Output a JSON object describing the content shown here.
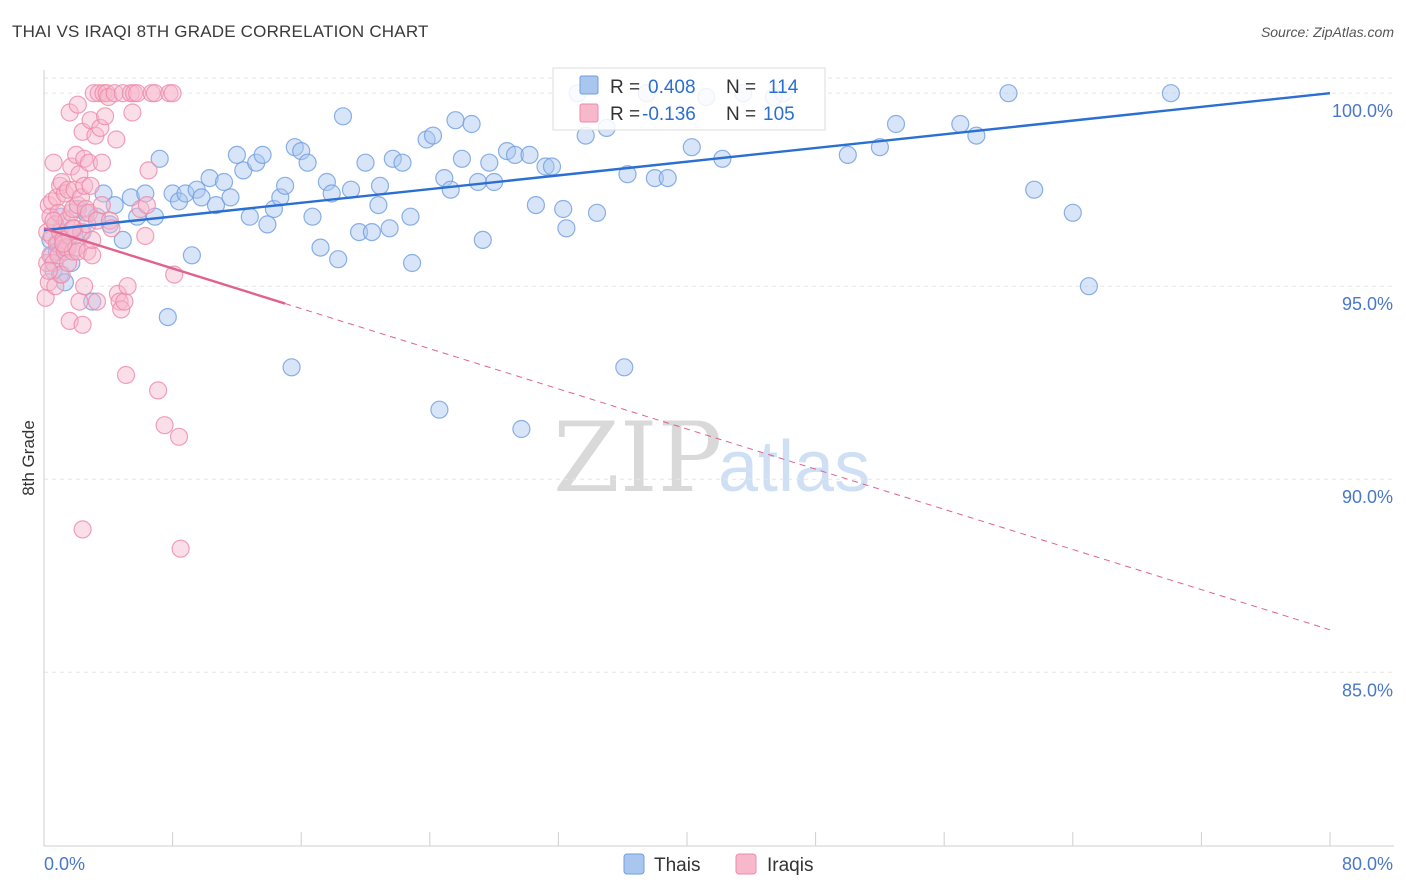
{
  "title": "THAI VS IRAQI 8TH GRADE CORRELATION CHART",
  "source": "Source: ZipAtlas.com",
  "colors": {
    "thais_fill": "#a9c6ef",
    "thais_stroke": "#6e9ee0",
    "thais_line": "#2a6fd1",
    "iraqis_fill": "#f7b8cb",
    "iraqis_stroke": "#ee8aaa",
    "iraqis_line": "#e0628e",
    "tick_text": "#4a78c8"
  },
  "legend": {
    "r_label": "R =",
    "n_label": "N =",
    "thais": {
      "r": "0.408",
      "n": "114"
    },
    "iraqis": {
      "r": "-0.136",
      "n": "105"
    }
  },
  "bottom_legend": {
    "thais": "Thais",
    "iraqis": "Iraqis"
  },
  "watermark": {
    "zip": "ZIP",
    "atlas": "atlas"
  },
  "chart_data": {
    "type": "scatter",
    "title": "THAI VS IRAQI 8TH GRADE CORRELATION CHART",
    "xlabel": "",
    "ylabel": "8th Grade",
    "xlim": [
      0,
      80
    ],
    "ylim": [
      80.5,
      100.6
    ],
    "x_tick_labels": [
      "0.0%",
      "80.0%"
    ],
    "y_ticks": [
      {
        "value": 100,
        "label": "100.0%"
      },
      {
        "value": 95,
        "label": "95.0%"
      },
      {
        "value": 90,
        "label": "90.0%"
      },
      {
        "value": 85,
        "label": "85.0%"
      }
    ],
    "series": [
      {
        "name": "Thais",
        "r": 0.408,
        "n": 114,
        "trend": {
          "x0": 0,
          "y0": 96.45,
          "x1": 80,
          "y1": 100.0,
          "x_solid_end": 80
        },
        "points": [
          [
            0.4,
            96.2
          ],
          [
            0.5,
            95.8
          ],
          [
            0.6,
            95.4
          ],
          [
            0.7,
            96.6
          ],
          [
            0.8,
            95.9
          ],
          [
            0.9,
            96.1
          ],
          [
            1.0,
            95.3
          ],
          [
            1.1,
            96.8
          ],
          [
            1.3,
            95.1
          ],
          [
            1.5,
            96.0
          ],
          [
            1.7,
            95.6
          ],
          [
            1.9,
            96.3
          ],
          [
            2.1,
            97.0
          ],
          [
            2.4,
            96.4
          ],
          [
            2.6,
            96.9
          ],
          [
            3.0,
            94.6
          ],
          [
            3.3,
            96.8
          ],
          [
            3.7,
            97.4
          ],
          [
            4.1,
            96.6
          ],
          [
            4.4,
            97.1
          ],
          [
            4.9,
            96.2
          ],
          [
            5.4,
            97.3
          ],
          [
            5.8,
            96.8
          ],
          [
            6.3,
            97.4
          ],
          [
            6.9,
            96.8
          ],
          [
            7.2,
            98.3
          ],
          [
            7.7,
            94.2
          ],
          [
            8.0,
            97.4
          ],
          [
            8.4,
            97.2
          ],
          [
            8.8,
            97.4
          ],
          [
            9.2,
            95.8
          ],
          [
            9.5,
            97.5
          ],
          [
            9.8,
            97.3
          ],
          [
            10.3,
            97.8
          ],
          [
            10.7,
            97.1
          ],
          [
            11.2,
            97.7
          ],
          [
            11.6,
            97.3
          ],
          [
            12.0,
            98.4
          ],
          [
            12.4,
            98.0
          ],
          [
            12.8,
            96.8
          ],
          [
            13.2,
            98.2
          ],
          [
            13.6,
            98.4
          ],
          [
            13.9,
            96.6
          ],
          [
            14.3,
            97.0
          ],
          [
            14.7,
            97.3
          ],
          [
            15.0,
            97.6
          ],
          [
            15.4,
            92.9
          ],
          [
            15.6,
            98.6
          ],
          [
            16.0,
            98.5
          ],
          [
            16.4,
            98.2
          ],
          [
            16.7,
            96.8
          ],
          [
            17.2,
            96.0
          ],
          [
            17.6,
            97.7
          ],
          [
            17.9,
            97.4
          ],
          [
            18.3,
            95.7
          ],
          [
            18.6,
            99.4
          ],
          [
            19.1,
            97.5
          ],
          [
            19.6,
            96.4
          ],
          [
            20.0,
            98.2
          ],
          [
            20.4,
            96.4
          ],
          [
            20.8,
            97.1
          ],
          [
            20.9,
            97.6
          ],
          [
            21.5,
            96.5
          ],
          [
            21.7,
            98.3
          ],
          [
            22.3,
            98.2
          ],
          [
            22.8,
            96.8
          ],
          [
            22.9,
            95.6
          ],
          [
            23.8,
            98.8
          ],
          [
            24.2,
            98.9
          ],
          [
            24.6,
            91.8
          ],
          [
            24.9,
            97.8
          ],
          [
            25.3,
            97.5
          ],
          [
            25.6,
            99.3
          ],
          [
            26.0,
            98.3
          ],
          [
            26.6,
            99.2
          ],
          [
            27.0,
            97.7
          ],
          [
            27.3,
            96.2
          ],
          [
            27.7,
            98.2
          ],
          [
            28.0,
            97.7
          ],
          [
            28.8,
            98.5
          ],
          [
            29.3,
            98.4
          ],
          [
            29.7,
            91.3
          ],
          [
            30.2,
            98.4
          ],
          [
            30.6,
            97.1
          ],
          [
            31.2,
            98.1
          ],
          [
            31.6,
            98.1
          ],
          [
            32.3,
            97.0
          ],
          [
            32.5,
            96.5
          ],
          [
            33.2,
            100.0
          ],
          [
            33.7,
            98.9
          ],
          [
            34.4,
            96.9
          ],
          [
            35.0,
            99.1
          ],
          [
            36.1,
            92.9
          ],
          [
            36.3,
            97.9
          ],
          [
            37.5,
            100.0
          ],
          [
            38.0,
            97.8
          ],
          [
            38.8,
            97.8
          ],
          [
            40.3,
            98.6
          ],
          [
            41.2,
            99.9
          ],
          [
            42.2,
            98.3
          ],
          [
            43.5,
            100.0
          ],
          [
            45.4,
            99.9
          ],
          [
            46.0,
            100.0
          ],
          [
            50.0,
            98.4
          ],
          [
            52.0,
            98.6
          ],
          [
            53.0,
            99.2
          ],
          [
            57.0,
            99.2
          ],
          [
            58.0,
            98.9
          ],
          [
            60.0,
            100.0
          ],
          [
            61.6,
            97.5
          ],
          [
            64.0,
            96.9
          ],
          [
            65.0,
            95.0
          ],
          [
            70.1,
            100.0
          ],
          [
            1.2,
            96.0
          ]
        ]
      },
      {
        "name": "Iraqis",
        "r": -0.136,
        "n": 105,
        "trend": {
          "x0": 0,
          "y0": 96.5,
          "x1": 80,
          "y1": 86.1,
          "x_solid_end": 15
        },
        "points": [
          [
            0.1,
            94.7
          ],
          [
            0.2,
            95.6
          ],
          [
            0.2,
            96.4
          ],
          [
            0.3,
            97.1
          ],
          [
            0.3,
            95.1
          ],
          [
            0.4,
            96.8
          ],
          [
            0.4,
            95.8
          ],
          [
            0.5,
            97.2
          ],
          [
            0.5,
            96.3
          ],
          [
            0.6,
            95.6
          ],
          [
            0.6,
            98.2
          ],
          [
            0.7,
            96.6
          ],
          [
            0.7,
            95.0
          ],
          [
            0.8,
            97.3
          ],
          [
            0.8,
            96.1
          ],
          [
            0.9,
            96.9
          ],
          [
            0.9,
            95.8
          ],
          [
            1.0,
            97.6
          ],
          [
            1.0,
            96.4
          ],
          [
            1.1,
            95.3
          ],
          [
            1.1,
            97.7
          ],
          [
            1.2,
            96.2
          ],
          [
            1.3,
            95.9
          ],
          [
            1.3,
            97.4
          ],
          [
            1.4,
            96.7
          ],
          [
            1.4,
            96.0
          ],
          [
            1.5,
            97.5
          ],
          [
            1.5,
            95.6
          ],
          [
            1.6,
            99.5
          ],
          [
            1.6,
            96.3
          ],
          [
            1.6,
            94.1
          ],
          [
            1.7,
            98.1
          ],
          [
            1.7,
            96.9
          ],
          [
            1.8,
            97.0
          ],
          [
            1.8,
            95.9
          ],
          [
            1.9,
            97.5
          ],
          [
            1.9,
            96.5
          ],
          [
            2.0,
            98.4
          ],
          [
            2.0,
            96.0
          ],
          [
            2.1,
            99.7
          ],
          [
            2.1,
            97.1
          ],
          [
            2.1,
            95.9
          ],
          [
            2.2,
            97.9
          ],
          [
            2.2,
            94.6
          ],
          [
            2.3,
            97.3
          ],
          [
            2.3,
            96.4
          ],
          [
            2.4,
            99.0
          ],
          [
            2.4,
            94.0
          ],
          [
            2.5,
            98.3
          ],
          [
            2.5,
            97.6
          ],
          [
            2.5,
            95.0
          ],
          [
            2.6,
            97.0
          ],
          [
            2.7,
            96.6
          ],
          [
            2.7,
            95.9
          ],
          [
            2.8,
            98.2
          ],
          [
            2.8,
            96.9
          ],
          [
            2.9,
            99.3
          ],
          [
            2.9,
            97.6
          ],
          [
            3.0,
            95.8
          ],
          [
            3.0,
            96.2
          ],
          [
            3.1,
            100.0
          ],
          [
            3.2,
            98.9
          ],
          [
            3.3,
            96.7
          ],
          [
            3.3,
            94.6
          ],
          [
            3.4,
            100.0
          ],
          [
            3.5,
            99.1
          ],
          [
            3.6,
            98.2
          ],
          [
            3.6,
            97.1
          ],
          [
            3.7,
            100.0
          ],
          [
            3.8,
            99.4
          ],
          [
            3.9,
            100.0
          ],
          [
            4.0,
            99.9
          ],
          [
            4.1,
            96.7
          ],
          [
            4.2,
            96.5
          ],
          [
            4.4,
            100.0
          ],
          [
            4.5,
            98.8
          ],
          [
            4.6,
            94.8
          ],
          [
            4.7,
            94.6
          ],
          [
            4.8,
            94.4
          ],
          [
            4.9,
            100.0
          ],
          [
            5.0,
            94.6
          ],
          [
            5.1,
            92.7
          ],
          [
            5.2,
            95.0
          ],
          [
            5.4,
            100.0
          ],
          [
            5.5,
            99.5
          ],
          [
            5.6,
            100.0
          ],
          [
            5.8,
            100.0
          ],
          [
            6.0,
            97.0
          ],
          [
            6.3,
            96.3
          ],
          [
            6.4,
            97.1
          ],
          [
            6.5,
            98.0
          ],
          [
            6.7,
            100.0
          ],
          [
            6.9,
            100.0
          ],
          [
            7.1,
            92.3
          ],
          [
            7.5,
            91.4
          ],
          [
            7.8,
            100.0
          ],
          [
            8.0,
            100.0
          ],
          [
            8.1,
            95.3
          ],
          [
            8.4,
            91.1
          ],
          [
            8.5,
            88.2
          ],
          [
            2.4,
            88.7
          ],
          [
            0.3,
            95.4
          ],
          [
            0.6,
            96.7
          ],
          [
            1.2,
            96.1
          ],
          [
            1.8,
            96.5
          ]
        ]
      }
    ]
  }
}
